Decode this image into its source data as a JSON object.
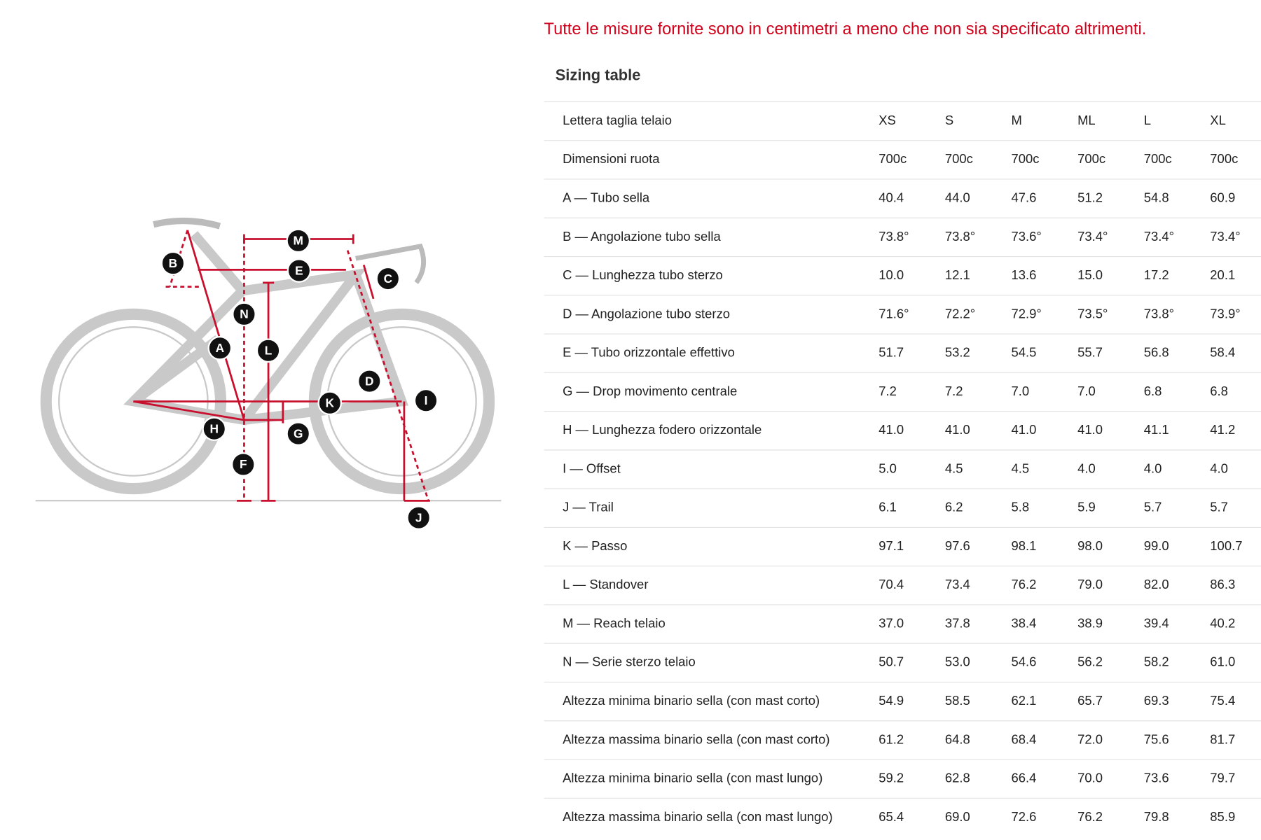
{
  "note": "Tutte le misure fornite sono in centimetri a meno che non sia specificato altrimenti.",
  "table": {
    "title": "Sizing table",
    "header": [
      "Lettera taglia telaio",
      "XS",
      "S",
      "M",
      "ML",
      "L",
      "XL"
    ],
    "rows": [
      [
        "Dimensioni ruota",
        "700c",
        "700c",
        "700c",
        "700c",
        "700c",
        "700c"
      ],
      [
        "A — Tubo sella",
        "40.4",
        "44.0",
        "47.6",
        "51.2",
        "54.8",
        "60.9"
      ],
      [
        "B — Angolazione tubo sella",
        "73.8°",
        "73.8°",
        "73.6°",
        "73.4°",
        "73.4°",
        "73.4°"
      ],
      [
        "C — Lunghezza tubo sterzo",
        "10.0",
        "12.1",
        "13.6",
        "15.0",
        "17.2",
        "20.1"
      ],
      [
        "D — Angolazione tubo sterzo",
        "71.6°",
        "72.2°",
        "72.9°",
        "73.5°",
        "73.8°",
        "73.9°"
      ],
      [
        "E — Tubo orizzontale effettivo",
        "51.7",
        "53.2",
        "54.5",
        "55.7",
        "56.8",
        "58.4"
      ],
      [
        "G — Drop movimento centrale",
        "7.2",
        "7.2",
        "7.0",
        "7.0",
        "6.8",
        "6.8"
      ],
      [
        "H — Lunghezza fodero orizzontale",
        "41.0",
        "41.0",
        "41.0",
        "41.0",
        "41.1",
        "41.2"
      ],
      [
        "I — Offset",
        "5.0",
        "4.5",
        "4.5",
        "4.0",
        "4.0",
        "4.0"
      ],
      [
        "J — Trail",
        "6.1",
        "6.2",
        "5.8",
        "5.9",
        "5.7",
        "5.7"
      ],
      [
        "K — Passo",
        "97.1",
        "97.6",
        "98.1",
        "98.0",
        "99.0",
        "100.7"
      ],
      [
        "L — Standover",
        "70.4",
        "73.4",
        "76.2",
        "79.0",
        "82.0",
        "86.3"
      ],
      [
        "M — Reach telaio",
        "37.0",
        "37.8",
        "38.4",
        "38.9",
        "39.4",
        "40.2"
      ],
      [
        "N — Serie sterzo telaio",
        "50.7",
        "53.0",
        "54.6",
        "56.2",
        "58.2",
        "61.0"
      ],
      [
        "Altezza minima binario sella (con mast corto)",
        "54.9",
        "58.5",
        "62.1",
        "65.7",
        "69.3",
        "75.4"
      ],
      [
        "Altezza massima binario sella (con mast corto)",
        "61.2",
        "64.8",
        "68.4",
        "72.0",
        "75.6",
        "81.7"
      ],
      [
        "Altezza minima binario sella (con mast lungo)",
        "59.2",
        "62.8",
        "66.4",
        "70.0",
        "73.6",
        "79.7"
      ],
      [
        "Altezza massima binario sella (con mast lungo)",
        "65.4",
        "69.0",
        "72.6",
        "76.2",
        "79.8",
        "85.9"
      ]
    ]
  },
  "diagram": {
    "labels": [
      "M",
      "E",
      "B",
      "C",
      "N",
      "L",
      "A",
      "D",
      "K",
      "I",
      "H",
      "G",
      "F",
      "J"
    ]
  }
}
